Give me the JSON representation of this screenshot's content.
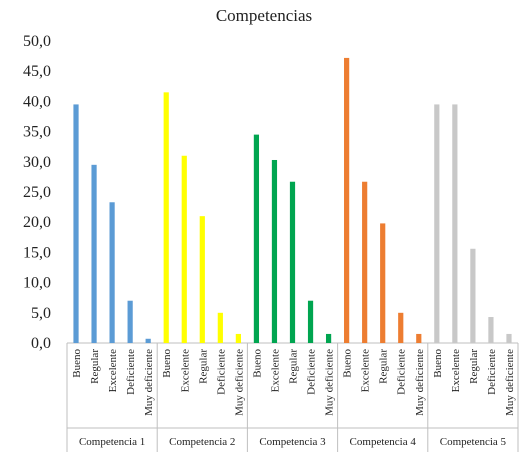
{
  "chart_data": {
    "type": "bar",
    "title": "Competencias",
    "xlabel": "",
    "ylabel": "",
    "ylim": [
      0,
      50
    ],
    "yticks": [
      "0,0",
      "5,0",
      "10,0",
      "15,0",
      "20,0",
      "25,0",
      "30,0",
      "35,0",
      "40,0",
      "45,0",
      "50,0"
    ],
    "grid": false,
    "legend": "none",
    "groups": [
      {
        "name": "Competencia 1",
        "color": "#5B9BD5",
        "categories": [
          "Bueno",
          "Regular",
          "Excelente",
          "Deficiente",
          "Muy deficiente"
        ],
        "values": [
          39.5,
          29.5,
          23.3,
          7.0,
          0.7
        ]
      },
      {
        "name": "Competencia 2",
        "color": "#FFFF00",
        "categories": [
          "Bueno",
          "Excelente",
          "Regular",
          "Deficiente",
          "Muy deficiente"
        ],
        "values": [
          41.5,
          31.0,
          21.0,
          5.0,
          1.5
        ]
      },
      {
        "name": "Competencia 3",
        "color": "#00A550",
        "categories": [
          "Bueno",
          "Excelente",
          "Regular",
          "Deficiente",
          "Muy deficiente"
        ],
        "values": [
          34.5,
          30.3,
          26.7,
          7.0,
          1.5
        ]
      },
      {
        "name": "Competencia 4",
        "color": "#ED7D31",
        "categories": [
          "Bueno",
          "Excelente",
          "Regular",
          "Deficiente",
          "Muy deficiente"
        ],
        "values": [
          47.2,
          26.7,
          19.8,
          5.0,
          1.5
        ]
      },
      {
        "name": "Competencia 5",
        "color": "#C8C8C8",
        "categories": [
          "Bueno",
          "Excelente",
          "Regular",
          "Deficiente",
          "Muy deficiente"
        ],
        "values": [
          39.5,
          39.5,
          15.6,
          4.3,
          1.5
        ]
      }
    ]
  }
}
